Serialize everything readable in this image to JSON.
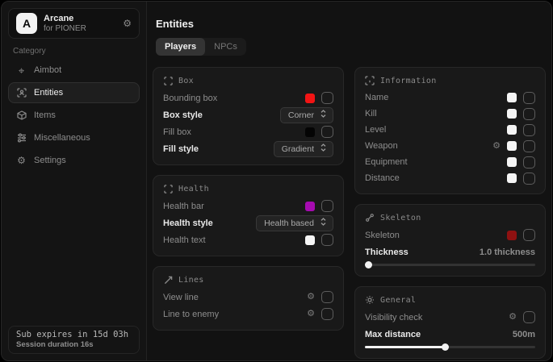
{
  "sidebar": {
    "brand": {
      "logo_letter": "A",
      "title": "Arcane",
      "subtitle": "for PIONER"
    },
    "category_label": "Category",
    "items": [
      {
        "label": "Aimbot",
        "icon": "crosshair-icon",
        "active": false
      },
      {
        "label": "Entities",
        "icon": "entities-scan-icon",
        "active": true
      },
      {
        "label": "Items",
        "icon": "cube-icon",
        "active": false
      },
      {
        "label": "Miscellaneous",
        "icon": "sliders-icon",
        "active": false
      },
      {
        "label": "Settings",
        "icon": "gear-icon",
        "active": false
      }
    ],
    "footer": {
      "line1": "Sub expires in 15d 03h",
      "line2": "Session duration 16s"
    }
  },
  "main": {
    "title": "Entities",
    "tabs": [
      {
        "label": "Players",
        "active": true
      },
      {
        "label": "NPCs",
        "active": false
      }
    ],
    "columns": {
      "left": [
        {
          "title": "Box",
          "icon": "corners-icon",
          "rows": [
            {
              "kind": "toggle",
              "label": "Bounding box",
              "swatch": "#f21414",
              "checked": false
            },
            {
              "kind": "dropdown",
              "label": "Box style",
              "value": "Corner"
            },
            {
              "kind": "toggle",
              "label": "Fill box",
              "swatch": "#040404",
              "checked": false
            },
            {
              "kind": "dropdown",
              "label": "Fill style",
              "value": "Gradient"
            }
          ]
        },
        {
          "title": "Health",
          "icon": "corners-icon",
          "rows": [
            {
              "kind": "toggle",
              "label": "Health bar",
              "swatch": "#a50bb0",
              "checked": false
            },
            {
              "kind": "dropdown",
              "label": "Health style",
              "value": "Health based"
            },
            {
              "kind": "toggle",
              "label": "Health text",
              "swatch": "#f5f5f5",
              "checked": false
            }
          ]
        },
        {
          "title": "Lines",
          "icon": "line-icon",
          "rows": [
            {
              "kind": "toggle",
              "label": "View line",
              "gear": true,
              "checked": false
            },
            {
              "kind": "toggle",
              "label": "Line to enemy",
              "gear": true,
              "checked": false
            }
          ]
        }
      ],
      "right": [
        {
          "title": "Information",
          "icon": "info-scan-icon",
          "dense": true,
          "rows": [
            {
              "kind": "toggle",
              "label": "Name",
              "swatch": "#f5f5f5",
              "checked": false
            },
            {
              "kind": "toggle",
              "label": "Kill",
              "swatch": "#f5f5f5",
              "checked": false
            },
            {
              "kind": "toggle",
              "label": "Level",
              "swatch": "#f5f5f5",
              "checked": false
            },
            {
              "kind": "toggle",
              "label": "Weapon",
              "gear": true,
              "swatch": "#f5f5f5",
              "checked": false
            },
            {
              "kind": "toggle",
              "label": "Equipment",
              "swatch": "#f5f5f5",
              "checked": false
            },
            {
              "kind": "toggle",
              "label": "Distance",
              "swatch": "#f5f5f5",
              "checked": false
            }
          ]
        },
        {
          "title": "Skeleton",
          "icon": "bone-icon",
          "rows": [
            {
              "kind": "toggle",
              "label": "Skeleton",
              "swatch": "#8f1111",
              "checked": false
            },
            {
              "kind": "slider",
              "label": "Thickness",
              "value": "1.0 thickness",
              "fill_percent": 0
            }
          ]
        },
        {
          "title": "General",
          "icon": "sun-icon",
          "rows": [
            {
              "kind": "toggle",
              "label": "Visibility check",
              "gear": true,
              "checked": false
            },
            {
              "kind": "slider",
              "label": "Max distance",
              "value": "500m",
              "fill_percent": 47
            }
          ]
        }
      ]
    }
  },
  "colors": {
    "accent_red": "#f21414",
    "accent_magenta": "#a50bb0",
    "accent_dark_red": "#8f1111",
    "card_bg": "#191919",
    "window_bg": "#121212"
  }
}
